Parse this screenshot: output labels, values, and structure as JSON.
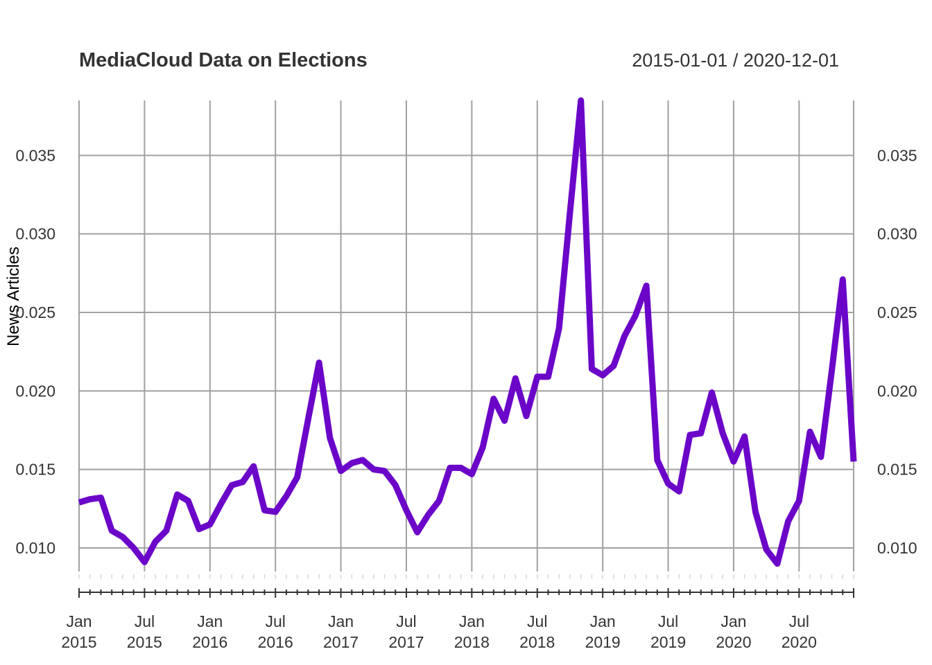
{
  "chart_data": {
    "type": "line",
    "title": "MediaCloud Data on Elections",
    "date_range": "2015-01-01 / 2020-12-01",
    "ylabel": "News Articles",
    "xlabel": "",
    "ylim": [
      0.0085,
      0.0385
    ],
    "xlim": [
      "2015-01-01",
      "2020-12-01"
    ],
    "y_ticks": [
      "0.010",
      "0.015",
      "0.020",
      "0.025",
      "0.030",
      "0.035"
    ],
    "y_tick_values": [
      0.01,
      0.015,
      0.02,
      0.025,
      0.03,
      0.035
    ],
    "x_ticks": [
      {
        "date": "2015-01-01",
        "month": "Jan",
        "year": "2015"
      },
      {
        "date": "2015-07-01",
        "month": "Jul",
        "year": "2015"
      },
      {
        "date": "2016-01-01",
        "month": "Jan",
        "year": "2016"
      },
      {
        "date": "2016-07-01",
        "month": "Jul",
        "year": "2016"
      },
      {
        "date": "2017-01-01",
        "month": "Jan",
        "year": "2017"
      },
      {
        "date": "2017-07-01",
        "month": "Jul",
        "year": "2017"
      },
      {
        "date": "2018-01-01",
        "month": "Jan",
        "year": "2018"
      },
      {
        "date": "2018-07-01",
        "month": "Jul",
        "year": "2018"
      },
      {
        "date": "2019-01-01",
        "month": "Jan",
        "year": "2019"
      },
      {
        "date": "2019-07-01",
        "month": "Jul",
        "year": "2019"
      },
      {
        "date": "2020-01-01",
        "month": "Jan",
        "year": "2020"
      },
      {
        "date": "2020-07-01",
        "month": "Jul",
        "year": "2020"
      }
    ],
    "grid": true,
    "color": "#6b06c9",
    "series": [
      {
        "start": "2015-01",
        "frequency": "monthly",
        "values": [
          0.0129,
          0.0131,
          0.0132,
          0.0111,
          0.0107,
          0.01,
          0.0091,
          0.0104,
          0.0111,
          0.0134,
          0.013,
          0.0112,
          0.0115,
          0.0128,
          0.014,
          0.0142,
          0.0152,
          0.0124,
          0.0123,
          0.0133,
          0.0145,
          0.0182,
          0.0218,
          0.017,
          0.0149,
          0.0154,
          0.0156,
          0.015,
          0.0149,
          0.014,
          0.0124,
          0.011,
          0.0121,
          0.013,
          0.0151,
          0.0151,
          0.0147,
          0.0164,
          0.0195,
          0.0181,
          0.0208,
          0.0184,
          0.0209,
          0.0209,
          0.024,
          0.0314,
          0.0385,
          0.0214,
          0.021,
          0.0216,
          0.0235,
          0.0248,
          0.0267,
          0.0156,
          0.0141,
          0.0136,
          0.0172,
          0.0173,
          0.0199,
          0.0173,
          0.0155,
          0.0171,
          0.0123,
          0.0099,
          0.009,
          0.0117,
          0.013,
          0.0174,
          0.0158,
          0.0213,
          0.0271,
          0.0155
        ]
      }
    ]
  }
}
